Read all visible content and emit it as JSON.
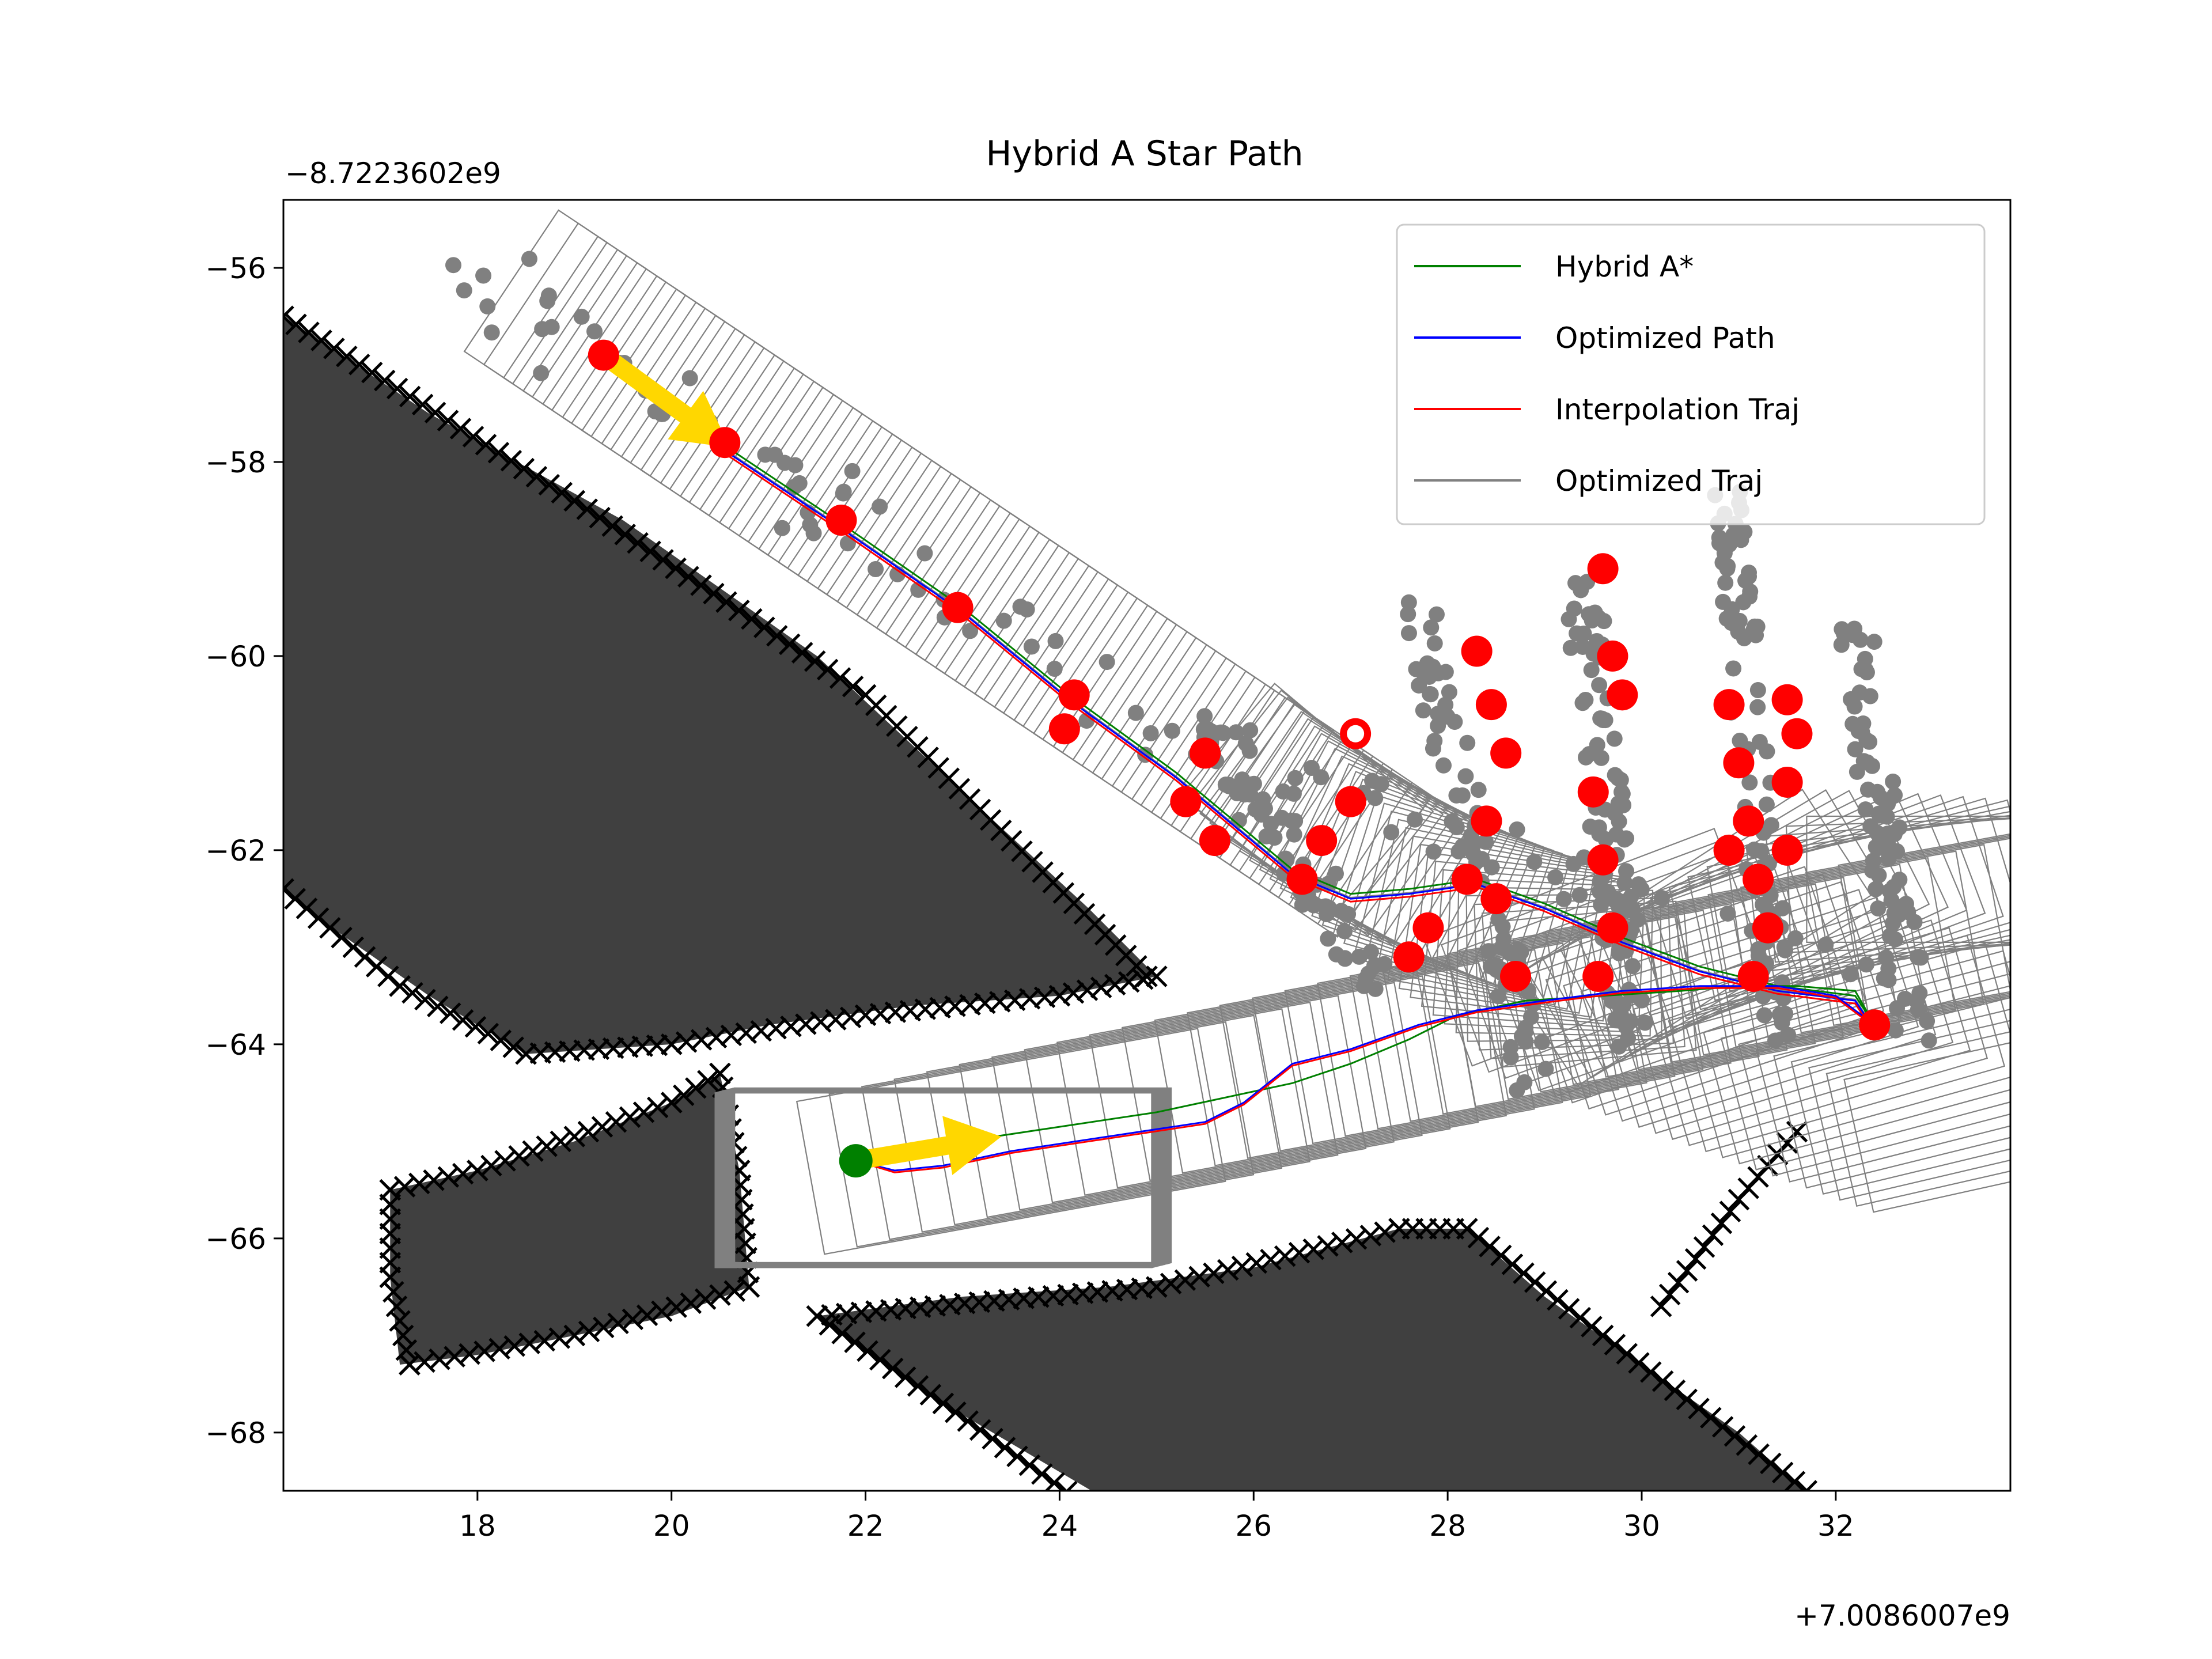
{
  "chart_data": {
    "type": "line",
    "title": "Hybrid A Star Path",
    "xlabel": "",
    "ylabel": "",
    "x_offset_label": "+7.0086007e9",
    "y_offset_label": "−8.7223602e9",
    "xlim": [
      16,
      33.8
    ],
    "ylim": [
      -68.6,
      -55.3
    ],
    "x_ticks": [
      18,
      20,
      22,
      24,
      26,
      28,
      30,
      32
    ],
    "y_ticks": [
      -56,
      -58,
      -60,
      -62,
      -64,
      -66,
      -68
    ],
    "x_tick_labels": [
      "18",
      "20",
      "22",
      "24",
      "26",
      "28",
      "30",
      "32"
    ],
    "y_tick_labels": [
      "−56",
      "−58",
      "−60",
      "−62",
      "−64",
      "−66",
      "−68"
    ],
    "legend_position": "upper right",
    "grid": false,
    "colors": {
      "hybrid": "#008000",
      "optimized_path": "#0000ff",
      "interpolation": "#ff0000",
      "optimized_traj": "#808080",
      "obstacle": "#404040",
      "cross": "#000000",
      "arrow": "#ffd700",
      "point_gray": "#808080",
      "point_red": "#ff0000",
      "start": "#008000"
    },
    "series": [
      {
        "name": "Hybrid A*",
        "color": "#008000",
        "x": [
          21.9,
          22.4,
          23.0,
          24.0,
          25.0,
          25.7,
          26.4,
          27.0,
          27.6,
          28.1,
          28.8,
          29.6,
          30.4,
          31.0,
          31.6,
          32.2,
          32.4
        ],
        "y": [
          -65.2,
          -65.1,
          -65.0,
          -64.85,
          -64.7,
          -64.55,
          -64.4,
          -64.2,
          -63.95,
          -63.7,
          -63.55,
          -63.5,
          -63.45,
          -63.4,
          -63.4,
          -63.45,
          -63.8
        ]
      },
      {
        "name": "Optimized Path",
        "color": "#0000ff",
        "x": [
          21.9,
          22.3,
          22.8,
          23.5,
          24.5,
          25.5,
          25.9,
          26.4,
          27.0,
          27.7,
          28.3,
          29.0,
          29.8,
          30.6,
          31.4,
          32.0,
          32.4
        ],
        "y": [
          -65.2,
          -65.3,
          -65.25,
          -65.1,
          -64.95,
          -64.8,
          -64.6,
          -64.2,
          -64.05,
          -63.8,
          -63.65,
          -63.55,
          -63.45,
          -63.4,
          -63.4,
          -63.5,
          -63.8
        ]
      },
      {
        "name": "Interpolation Traj",
        "color": "#ff0000",
        "x": [
          21.9,
          22.3,
          22.8,
          23.5,
          24.5,
          25.5,
          25.9,
          26.4,
          27.0,
          27.7,
          28.3,
          29.0,
          29.8,
          30.6,
          31.4,
          32.0,
          32.4
        ],
        "y": [
          -65.2,
          -65.32,
          -65.27,
          -65.12,
          -64.97,
          -64.82,
          -64.62,
          -64.22,
          -64.07,
          -63.82,
          -63.67,
          -63.57,
          -63.47,
          -63.42,
          -63.42,
          -63.52,
          -63.82
        ]
      },
      {
        "name": "Optimized Traj",
        "color": "#808080",
        "x": [],
        "y": []
      }
    ],
    "upper_route": {
      "x": [
        19.3,
        20.5,
        21.7,
        23.0,
        24.1,
        25.2,
        25.8,
        26.4,
        27.0,
        27.6,
        28.3,
        29.0,
        29.8,
        30.6,
        31.4,
        32.2,
        32.4
      ],
      "y": [
        -56.9,
        -57.8,
        -58.6,
        -59.5,
        -60.4,
        -61.2,
        -61.7,
        -62.2,
        -62.45,
        -62.4,
        -62.3,
        -62.55,
        -62.9,
        -63.2,
        -63.4,
        -63.5,
        -63.8
      ]
    },
    "arrows": [
      {
        "x": 19.3,
        "y": -56.9,
        "dx": 1.3,
        "dy": -0.95
      },
      {
        "x": 21.9,
        "y": -65.2,
        "dx": 1.5,
        "dy": 0.25
      }
    ],
    "red_points": [
      [
        19.3,
        -56.9
      ],
      [
        20.55,
        -57.8
      ],
      [
        21.75,
        -58.6
      ],
      [
        22.95,
        -59.5
      ],
      [
        24.05,
        -60.75
      ],
      [
        24.15,
        -60.4
      ],
      [
        25.5,
        -61.0
      ],
      [
        25.3,
        -61.5
      ],
      [
        25.6,
        -61.9
      ],
      [
        26.5,
        -62.3
      ],
      [
        26.7,
        -61.9
      ],
      [
        27.05,
        -60.8
      ],
      [
        27.0,
        -61.5
      ],
      [
        27.6,
        -63.1
      ],
      [
        27.8,
        -62.8
      ],
      [
        28.2,
        -62.3
      ],
      [
        28.3,
        -59.95
      ],
      [
        28.45,
        -60.5
      ],
      [
        28.6,
        -61.0
      ],
      [
        28.4,
        -61.7
      ],
      [
        28.5,
        -62.5
      ],
      [
        28.7,
        -63.3
      ],
      [
        29.6,
        -59.1
      ],
      [
        29.5,
        -61.4
      ],
      [
        29.7,
        -60.0
      ],
      [
        29.8,
        -60.4
      ],
      [
        29.6,
        -62.1
      ],
      [
        29.7,
        -62.8
      ],
      [
        29.55,
        -63.3
      ],
      [
        30.9,
        -60.5
      ],
      [
        31.0,
        -61.1
      ],
      [
        31.1,
        -61.7
      ],
      [
        31.2,
        -62.3
      ],
      [
        31.3,
        -62.8
      ],
      [
        31.15,
        -63.3
      ],
      [
        31.5,
        -60.45
      ],
      [
        31.5,
        -61.3
      ],
      [
        31.5,
        -62.0
      ],
      [
        30.9,
        -62.0
      ],
      [
        31.6,
        -60.8
      ],
      [
        32.4,
        -63.8
      ]
    ],
    "footprint_angles_deg": [
      -33.7,
      -37.6,
      0,
      10.3,
      20.8,
      33.0
    ]
  }
}
